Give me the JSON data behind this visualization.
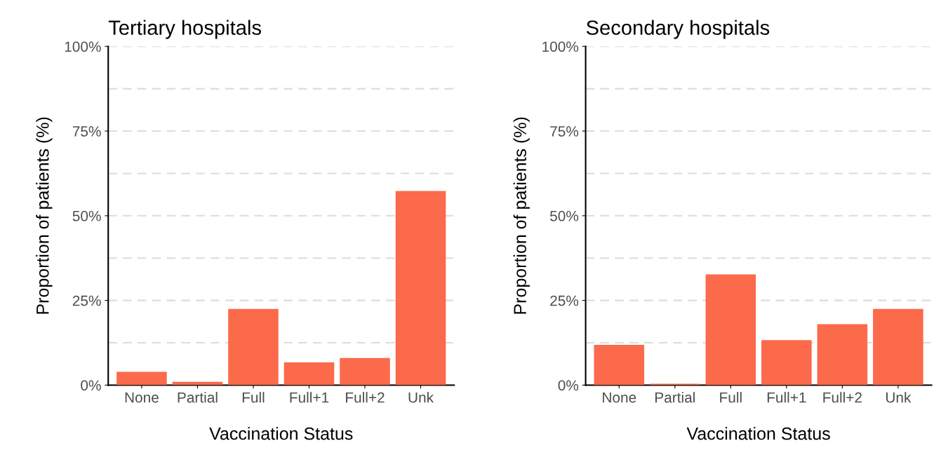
{
  "chart_data": [
    {
      "type": "bar",
      "title": "Tertiary hospitals",
      "xlabel": "Vaccination Status",
      "ylabel": "Proportion of patients (%)",
      "categories": [
        "None",
        "Partial",
        "Full",
        "Full+1",
        "Full+2",
        "Unk"
      ],
      "values": [
        3.9,
        1.0,
        22.5,
        6.7,
        8.0,
        57.3
      ],
      "color": "#fb6a4a",
      "ylim": [
        0,
        100
      ],
      "yticks": [
        {
          "value": 0,
          "label": "0%"
        },
        {
          "value": 12.5,
          "label": null
        },
        {
          "value": 25,
          "label": "25%"
        },
        {
          "value": 37.5,
          "label": null
        },
        {
          "value": 50,
          "label": "50%"
        },
        {
          "value": 62.5,
          "label": null
        },
        {
          "value": 75,
          "label": "75%"
        },
        {
          "value": 87.5,
          "label": null
        },
        {
          "value": 100,
          "label": "100%"
        }
      ],
      "grid": "y"
    },
    {
      "type": "bar",
      "title": "Secondary hospitals",
      "xlabel": "Vaccination Status",
      "ylabel": "Proportion of patients (%)",
      "categories": [
        "None",
        "Partial",
        "Full",
        "Full+1",
        "Full+2",
        "Unk"
      ],
      "values": [
        11.9,
        0.4,
        32.7,
        13.3,
        18.0,
        22.5
      ],
      "color": "#fb6a4a",
      "ylim": [
        0,
        100
      ],
      "yticks": [
        {
          "value": 0,
          "label": "0%"
        },
        {
          "value": 12.5,
          "label": null
        },
        {
          "value": 25,
          "label": "25%"
        },
        {
          "value": 37.5,
          "label": null
        },
        {
          "value": 50,
          "label": "50%"
        },
        {
          "value": 62.5,
          "label": null
        },
        {
          "value": 75,
          "label": "75%"
        },
        {
          "value": 87.5,
          "label": null
        },
        {
          "value": 100,
          "label": "100%"
        }
      ],
      "grid": "y"
    }
  ]
}
